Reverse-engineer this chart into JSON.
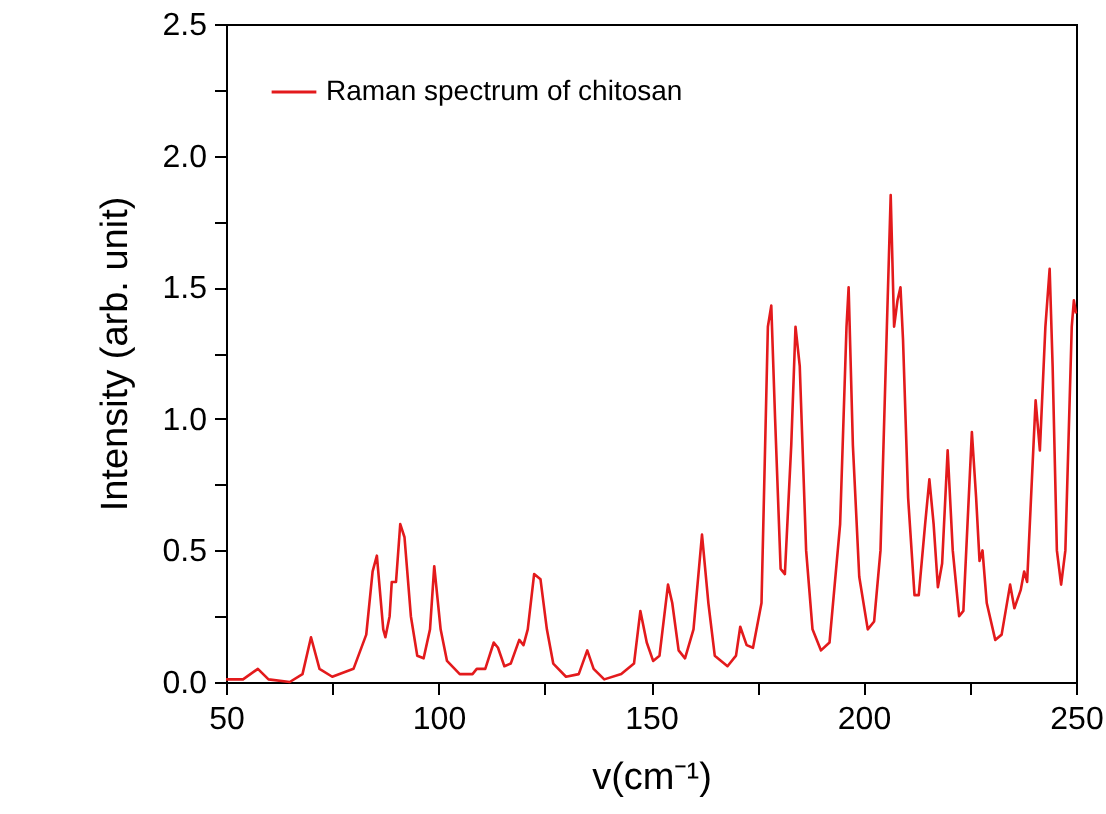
{
  "chart_data": {
    "type": "line",
    "xlabel": "v(cm⁻¹)",
    "ylabel": "Intensity (arb. unit)",
    "xlim": [
      50,
      250
    ],
    "ylim": [
      0,
      2.5
    ],
    "xticks": [
      50,
      {
        "value": 75,
        "label": null
      },
      100,
      {
        "value": 125,
        "label": null
      },
      150,
      {
        "value": 175,
        "label": null
      },
      200,
      {
        "value": 225,
        "label": null
      },
      250
    ],
    "yticks": [
      "0.0",
      {
        "value": 0.25,
        "label": null
      },
      {
        "value": 0.5,
        "label": "0.5"
      },
      {
        "value": 0.75,
        "label": null
      },
      {
        "value": 1,
        "label": "1.0"
      },
      {
        "value": 1.25,
        "label": null
      },
      {
        "value": 1.5,
        "label": "1.5"
      },
      {
        "value": 1.75,
        "label": null
      },
      {
        "value": 2,
        "label": "2.0"
      },
      {
        "value": 2.25,
        "label": null
      },
      {
        "value": 2.5,
        "label": "2.5"
      }
    ],
    "grid": false,
    "legend": "top left",
    "marker": "none",
    "line_style": "solid",
    "x": [
      50,
      54,
      57.5,
      60,
      65,
      68,
      70,
      72,
      75,
      80,
      83,
      84.5,
      85.5,
      87,
      87.5,
      88.5,
      89,
      90,
      91,
      92,
      93.5,
      95,
      96.5,
      98,
      99,
      100.5,
      102,
      105,
      108,
      109,
      111,
      113,
      114,
      115.5,
      117,
      119,
      120,
      121,
      122.5,
      124,
      125.5,
      127,
      130,
      133,
      135,
      136.5,
      139,
      143,
      146,
      147.5,
      149,
      150.5,
      152,
      154,
      155,
      156.5,
      158,
      160,
      162,
      163.5,
      165,
      168,
      170,
      171,
      172.5,
      174,
      176,
      177.5,
      178.3,
      179.2,
      180.5,
      181.5,
      183,
      184,
      185,
      186.5,
      188,
      190,
      192,
      194.5,
      196,
      196.5,
      197.5,
      199,
      201,
      202.5,
      204,
      205.5,
      206.4,
      207.2,
      208,
      208.7,
      209.3,
      210.5,
      212,
      213,
      214.5,
      215.5,
      216.5,
      217.5,
      218.5,
      219.8,
      221,
      222.5,
      223.5,
      225.5,
      226.5,
      227.3,
      228,
      229,
      231,
      232.5,
      234.5,
      235.5,
      237,
      237.8,
      238.5,
      240,
      240.5,
      241.5,
      242.8,
      243.8,
      244.5,
      245.5,
      246.5,
      247.5,
      249,
      249.5,
      250
    ],
    "series": [
      {
        "name": "Raman spectrum of chitosan",
        "color": "#e31a1c",
        "values": [
          0.01,
          0.01,
          0.05,
          0.01,
          0.0,
          0.03,
          0.17,
          0.05,
          0.02,
          0.05,
          0.18,
          0.42,
          0.48,
          0.2,
          0.17,
          0.25,
          0.38,
          0.38,
          0.6,
          0.55,
          0.25,
          0.1,
          0.09,
          0.2,
          0.44,
          0.2,
          0.08,
          0.03,
          0.03,
          0.05,
          0.05,
          0.15,
          0.13,
          0.06,
          0.07,
          0.16,
          0.14,
          0.2,
          0.41,
          0.39,
          0.2,
          0.07,
          0.02,
          0.03,
          0.12,
          0.05,
          0.01,
          0.03,
          0.07,
          0.27,
          0.15,
          0.08,
          0.1,
          0.37,
          0.3,
          0.12,
          0.09,
          0.2,
          0.56,
          0.3,
          0.1,
          0.06,
          0.1,
          0.21,
          0.14,
          0.13,
          0.3,
          1.35,
          1.43,
          1.0,
          0.43,
          0.41,
          0.9,
          1.35,
          1.2,
          0.5,
          0.2,
          0.12,
          0.15,
          0.6,
          1.35,
          1.5,
          0.9,
          0.4,
          0.2,
          0.23,
          0.5,
          1.35,
          1.85,
          1.35,
          1.45,
          1.5,
          1.3,
          0.7,
          0.33,
          0.33,
          0.6,
          0.77,
          0.6,
          0.36,
          0.45,
          0.88,
          0.5,
          0.25,
          0.27,
          0.95,
          0.7,
          0.46,
          0.5,
          0.3,
          0.16,
          0.18,
          0.37,
          0.28,
          0.35,
          0.42,
          0.38,
          0.9,
          1.07,
          0.88,
          1.35,
          1.57,
          1.2,
          0.5,
          0.37,
          0.5,
          1.35,
          1.45,
          1.4
        ]
      }
    ]
  }
}
